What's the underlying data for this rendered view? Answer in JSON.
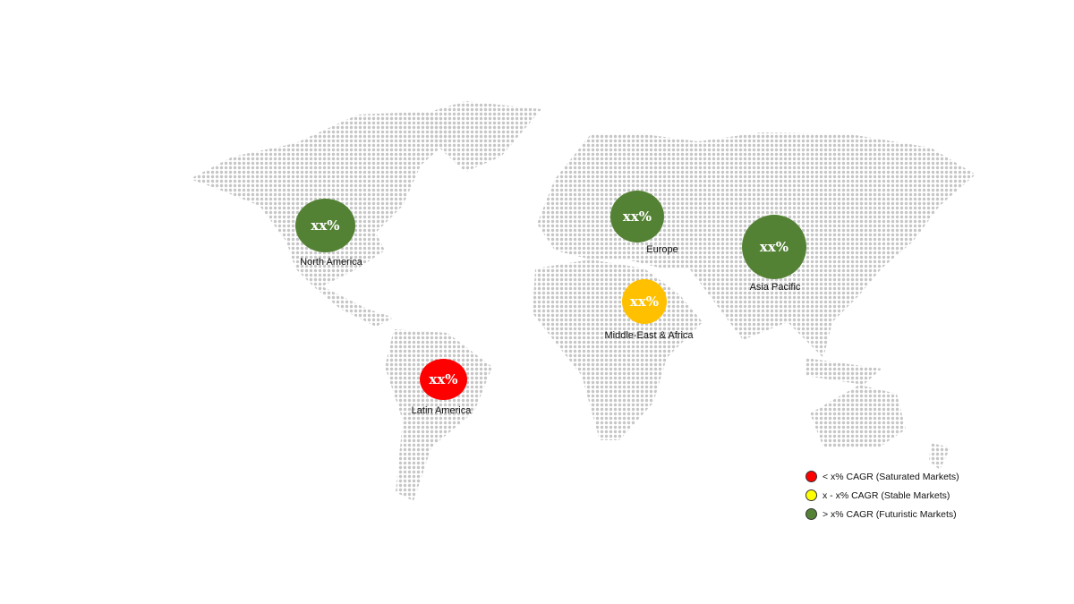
{
  "regions": [
    {
      "name": "North America",
      "value": "xx%",
      "color": "#548235"
    },
    {
      "name": "Europe",
      "value": "xx%",
      "color": "#548235"
    },
    {
      "name": "Asia Pacific",
      "value": "xx%",
      "color": "#548235"
    },
    {
      "name": "Middle-East & Africa",
      "value": "xx%",
      "color": "#FFC000"
    },
    {
      "name": "Latin America",
      "value": "xx%",
      "color": "#FF0000"
    }
  ],
  "legend": [
    {
      "label": "< x% CAGR (Saturated Markets)",
      "color": "#FF0000"
    },
    {
      "label": "x - x% CAGR (Stable Markets)",
      "color": "#FFFF00"
    },
    {
      "label": "> x% CAGR (Futuristic Markets)",
      "color": "#548235"
    }
  ],
  "map_dot_color": "#c6c6c6"
}
